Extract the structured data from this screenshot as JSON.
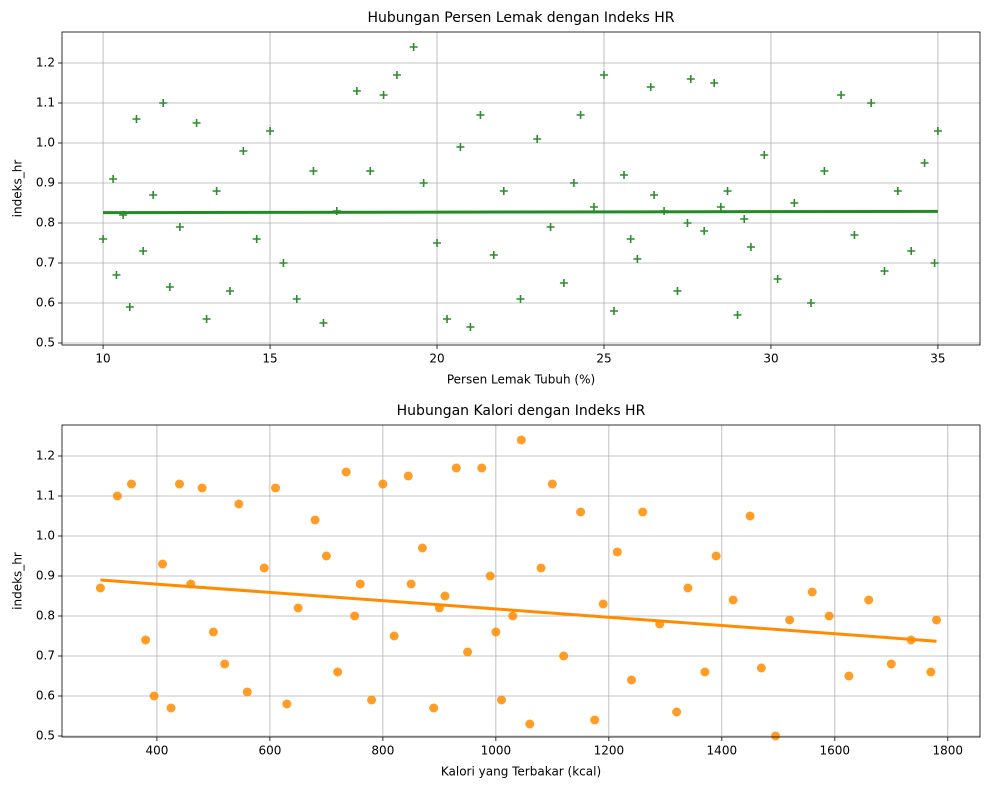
{
  "chart_data": [
    {
      "type": "scatter",
      "title": "Hubungan Persen Lemak dengan Indeks HR",
      "xlabel": "Persen Lemak Tubuh (%)",
      "ylabel": "indeks_hr",
      "marker": "plus",
      "color": "#2e8b2e",
      "grid": true,
      "xlim": [
        8.77,
        36.26
      ],
      "ylim": [
        0.495,
        1.2775
      ],
      "xticks": [
        10,
        15,
        20,
        25,
        30,
        35
      ],
      "yticks": [
        0.5,
        0.6,
        0.7,
        0.8,
        0.9,
        {
          "value": 1,
          "label": "1.0"
        },
        1.1,
        1.2
      ],
      "x": [
        10,
        10.3,
        10.4,
        10.6,
        10.8,
        11,
        11.2,
        11.5,
        11.8,
        12,
        12.3,
        12.8,
        13.1,
        13.4,
        13.8,
        14.2,
        14.6,
        15,
        15.4,
        15.8,
        16.3,
        16.6,
        17,
        17.6,
        18,
        18.4,
        18.8,
        19.3,
        19.6,
        20,
        20.3,
        20.7,
        21,
        21.3,
        21.7,
        22,
        22.5,
        23,
        23.4,
        23.8,
        24.3,
        24.7,
        25,
        25.3,
        25.6,
        26,
        26.4,
        26.8,
        27.2,
        27.6,
        28,
        28.3,
        28.7,
        29,
        29.4,
        29.8,
        30.2,
        30.7,
        31.2,
        31.6,
        32.1,
        32.5,
        33,
        33.4,
        33.8,
        34.2,
        34.6,
        35,
        34.9,
        27.5,
        28.5,
        26.5,
        25.8,
        29.2,
        24.1
      ],
      "y": [
        0.76,
        0.91,
        0.67,
        0.82,
        0.59,
        1.06,
        0.73,
        0.87,
        1.1,
        0.64,
        0.79,
        1.05,
        0.56,
        0.88,
        0.63,
        0.98,
        0.76,
        1.03,
        0.7,
        0.61,
        0.93,
        0.55,
        0.83,
        1.13,
        0.93,
        1.12,
        1.17,
        1.24,
        0.9,
        0.75,
        0.56,
        0.99,
        0.54,
        1.07,
        0.72,
        0.88,
        0.61,
        1.01,
        0.79,
        0.65,
        1.07,
        0.84,
        1.17,
        0.58,
        0.92,
        0.71,
        1.14,
        0.83,
        0.63,
        1.16,
        0.78,
        1.15,
        0.88,
        0.57,
        0.74,
        0.97,
        0.66,
        0.85,
        0.6,
        0.93,
        1.12,
        0.77,
        1.1,
        0.68,
        0.88,
        0.73,
        0.95,
        1.03,
        0.7,
        0.8,
        0.84,
        0.87,
        0.76,
        0.81,
        0.9
      ],
      "regression": {
        "color": "#228b22",
        "x": [
          10,
          35
        ],
        "y": [
          0.826,
          0.829
        ]
      }
    },
    {
      "type": "scatter",
      "title": "Hubungan Kalori dengan Indeks HR",
      "xlabel": "Kalori yang Terbakar (kcal)",
      "ylabel": "indeks_hr",
      "marker": "circle",
      "color": "#ff8c00",
      "grid": true,
      "xlim": [
        232,
        1857
      ],
      "ylim": [
        0.4975,
        1.2775
      ],
      "xticks": [
        400,
        600,
        800,
        1000,
        1200,
        1400,
        1600,
        1800
      ],
      "yticks": [
        0.5,
        0.6,
        0.7,
        0.8,
        0.9,
        {
          "value": 1,
          "label": "1.0"
        },
        1.1,
        1.2
      ],
      "x": [
        300,
        330,
        355,
        380,
        395,
        410,
        425,
        440,
        460,
        480,
        500,
        520,
        545,
        560,
        590,
        610,
        630,
        650,
        680,
        700,
        720,
        735,
        760,
        780,
        800,
        820,
        845,
        870,
        890,
        910,
        930,
        950,
        975,
        990,
        1010,
        1030,
        1045,
        1060,
        1080,
        1100,
        1120,
        1150,
        1175,
        1190,
        1215,
        1240,
        1260,
        1290,
        1320,
        1340,
        1370,
        1390,
        1420,
        1450,
        1470,
        1495,
        1520,
        1560,
        1590,
        1625,
        1660,
        1700,
        1735,
        1770,
        1780,
        900,
        1000,
        850,
        750
      ],
      "y": [
        0.87,
        1.1,
        1.13,
        0.74,
        0.6,
        0.93,
        0.57,
        1.13,
        0.88,
        1.12,
        0.76,
        0.68,
        1.08,
        0.61,
        0.92,
        1.12,
        0.58,
        0.82,
        1.04,
        0.95,
        0.66,
        1.16,
        0.88,
        0.59,
        1.13,
        0.75,
        1.15,
        0.97,
        0.57,
        0.85,
        1.17,
        0.71,
        1.17,
        0.9,
        0.59,
        0.8,
        1.24,
        0.53,
        0.92,
        1.13,
        0.7,
        1.06,
        0.54,
        0.83,
        0.96,
        0.64,
        1.06,
        0.78,
        0.56,
        0.87,
        0.66,
        0.95,
        0.84,
        1.05,
        0.67,
        0.5,
        0.79,
        0.86,
        0.8,
        0.65,
        0.84,
        0.68,
        0.74,
        0.66,
        0.79,
        0.82,
        0.76,
        0.88,
        0.8
      ],
      "regression": {
        "color": "#ff8c00",
        "x": [
          300,
          1780
        ],
        "y": [
          0.89,
          0.737
        ]
      }
    }
  ]
}
